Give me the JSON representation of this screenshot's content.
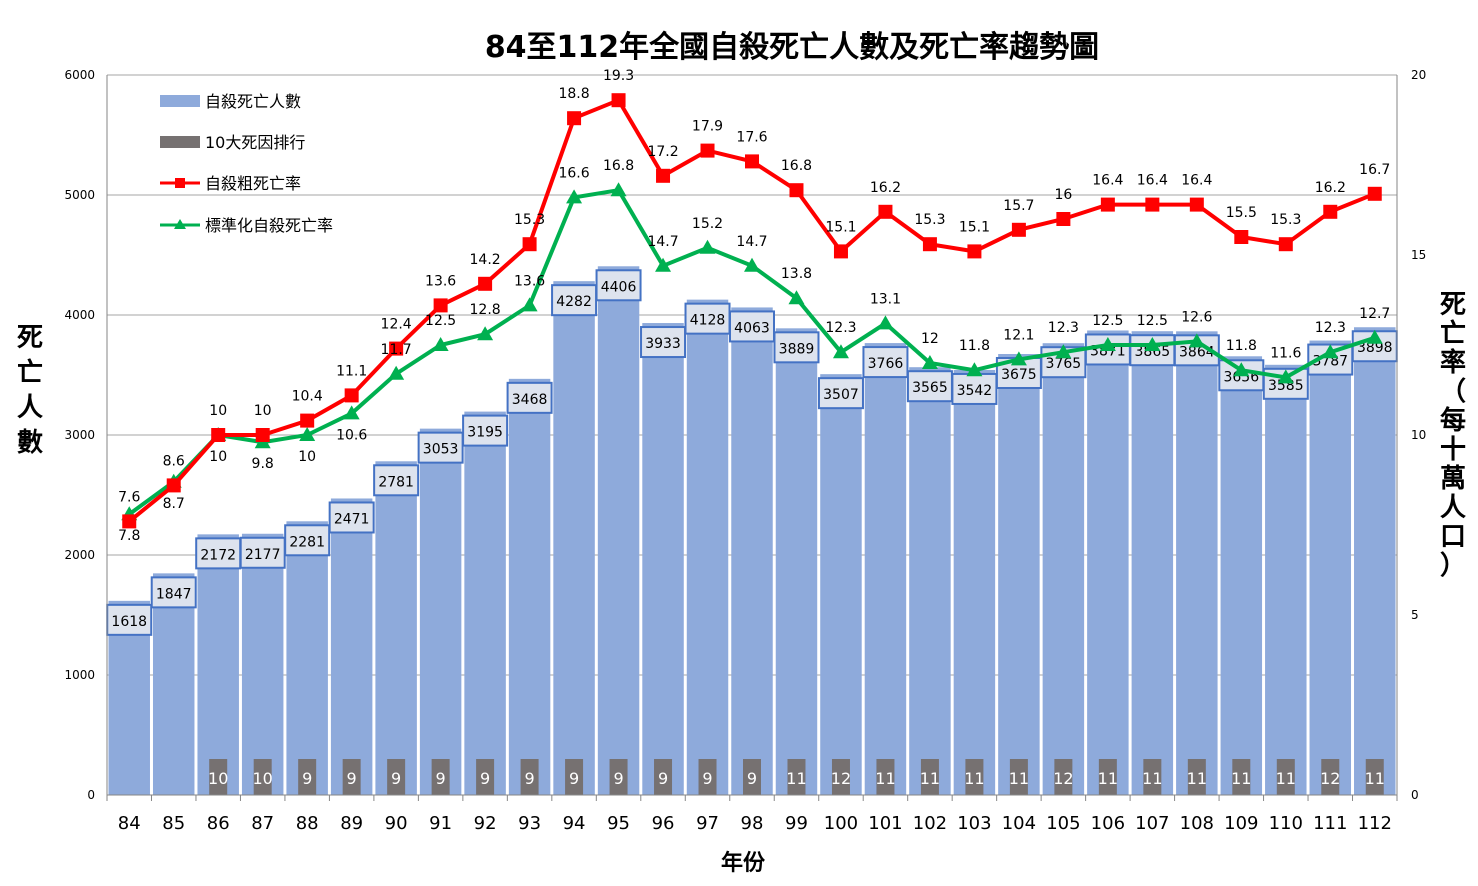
{
  "chart_data": {
    "type": "bar+line",
    "title": "84至112年全國自殺死亡人數及死亡率趨勢圖",
    "xlabel": "年份",
    "ylabel_left": "死亡人數",
    "ylabel_right": "死亡率（每十萬人口）",
    "ylim_left": [
      0,
      6000
    ],
    "yticks_left": [
      0,
      1000,
      2000,
      3000,
      4000,
      5000,
      6000
    ],
    "ylim_right": [
      0,
      20
    ],
    "yticks_right": [
      0,
      5,
      10,
      15,
      20
    ],
    "grid": true,
    "legend_position": "top-left",
    "categories": [
      "84",
      "85",
      "86",
      "87",
      "88",
      "89",
      "90",
      "91",
      "92",
      "93",
      "94",
      "95",
      "96",
      "97",
      "98",
      "99",
      "100",
      "101",
      "102",
      "103",
      "104",
      "105",
      "106",
      "107",
      "108",
      "109",
      "110",
      "111",
      "112"
    ],
    "series": [
      {
        "name": "自殺死亡人數",
        "type": "bar",
        "axis": "left",
        "color": "#8eaadb",
        "values": [
          1618,
          1847,
          2172,
          2177,
          2281,
          2471,
          2781,
          3053,
          3195,
          3468,
          4282,
          4406,
          3933,
          4128,
          4063,
          3889,
          3507,
          3766,
          3565,
          3542,
          3675,
          3765,
          3871,
          3865,
          3864,
          3656,
          3585,
          3787,
          3898
        ]
      },
      {
        "name": "10大死因排行",
        "type": "bar",
        "color": "#767171",
        "values": [
          null,
          null,
          10,
          10,
          9,
          9,
          9,
          9,
          9,
          9,
          9,
          9,
          9,
          9,
          9,
          11,
          12,
          11,
          11,
          11,
          11,
          12,
          11,
          11,
          11,
          11,
          11,
          12,
          11
        ]
      },
      {
        "name": "自殺粗死亡率",
        "type": "line",
        "axis": "right",
        "color": "#ff0000",
        "marker": "square",
        "values": [
          7.6,
          8.6,
          10,
          10,
          10.4,
          11.1,
          12.4,
          13.6,
          14.2,
          15.3,
          18.8,
          19.3,
          17.2,
          17.9,
          17.6,
          16.8,
          15.1,
          16.2,
          15.3,
          15.1,
          15.7,
          16,
          16.4,
          16.4,
          16.4,
          15.5,
          15.3,
          16.2,
          16.7
        ]
      },
      {
        "name": "標準化自殺死亡率",
        "type": "line",
        "axis": "right",
        "color": "#00b050",
        "marker": "triangle",
        "values": [
          7.8,
          8.7,
          10,
          9.8,
          10,
          10.6,
          11.7,
          12.5,
          12.8,
          13.6,
          16.6,
          16.8,
          14.7,
          15.2,
          14.7,
          13.8,
          12.3,
          13.1,
          12.0,
          11.8,
          12.1,
          12.3,
          12.5,
          12.5,
          12.6,
          11.8,
          11.6,
          12.3,
          12.7
        ]
      }
    ]
  }
}
